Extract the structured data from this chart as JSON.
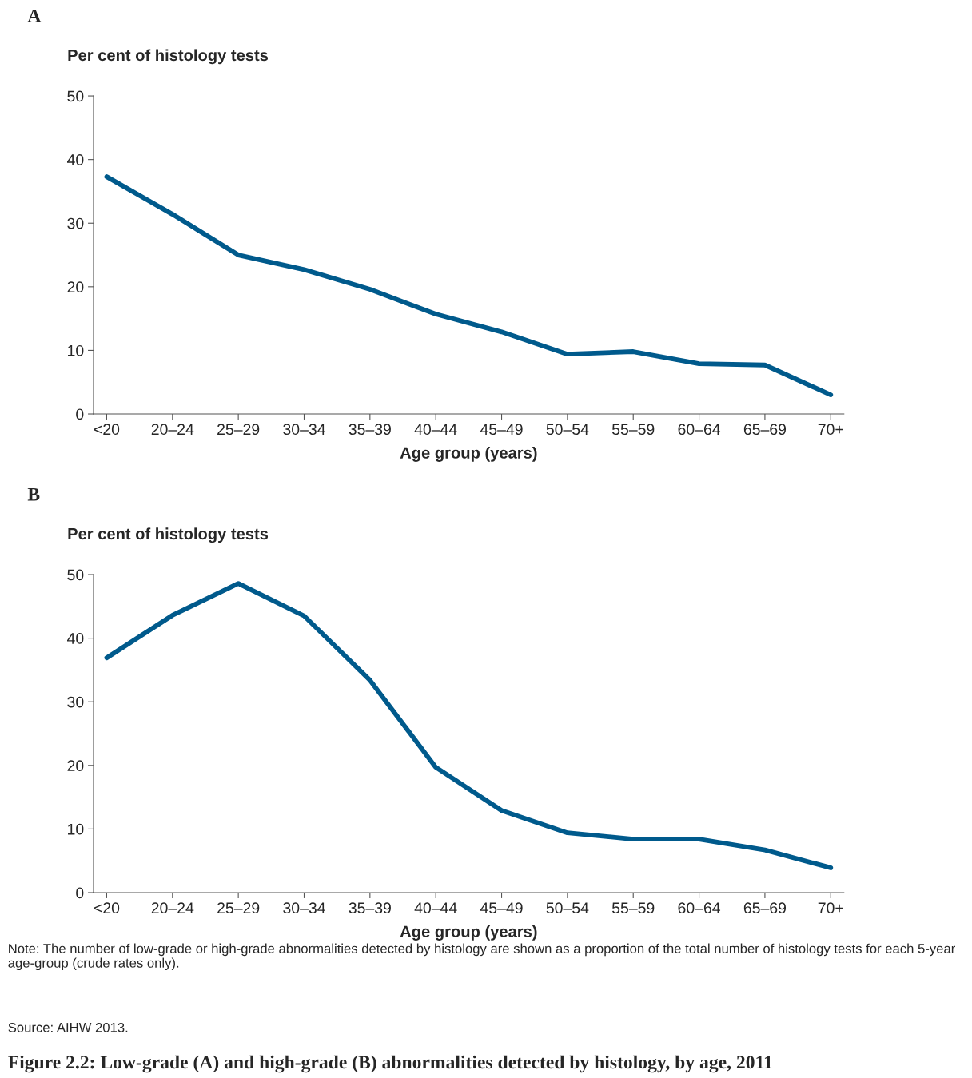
{
  "chart_data": [
    {
      "type": "line",
      "title": "A",
      "ylabel": "Per cent of histology tests",
      "xlabel": "Age group (years)",
      "categories": [
        "<20",
        "20–24",
        "25–29",
        "30–34",
        "35–39",
        "40–44",
        "45–49",
        "50–54",
        "55–59",
        "60–64",
        "65–69",
        "70+"
      ],
      "series": [
        {
          "color": "#005a8c",
          "values": [
            37.3,
            31.4,
            25.0,
            22.7,
            19.6,
            15.7,
            12.9,
            9.4,
            9.8,
            7.9,
            7.7,
            3.0
          ]
        }
      ],
      "ylim": [
        0,
        50
      ],
      "yticks": [
        0,
        10,
        20,
        30,
        40,
        50
      ],
      "grid": false,
      "legend": false,
      "marker": "none",
      "line_style": "solid"
    },
    {
      "type": "line",
      "title": "B",
      "ylabel": "Per cent of histology tests",
      "xlabel": "Age group (years)",
      "categories": [
        "<20",
        "20–24",
        "25–29",
        "30–34",
        "35–39",
        "40–44",
        "45–49",
        "50–54",
        "55–59",
        "60–64",
        "65–69",
        "70+"
      ],
      "series": [
        {
          "color": "#005a8c",
          "values": [
            36.9,
            43.6,
            48.6,
            43.5,
            33.4,
            19.7,
            12.9,
            9.4,
            8.4,
            8.4,
            6.7,
            3.9
          ]
        }
      ],
      "ylim": [
        0,
        50
      ],
      "yticks": [
        0,
        10,
        20,
        30,
        40,
        50
      ],
      "grid": false,
      "legend": false,
      "marker": "none",
      "line_style": "solid",
      "annotations": [
        "Note: The number of low-grade or high-grade abnormalities detected by histology are shown as a proportion of the total number of histology tests for each 5-year age-group (crude rates only).",
        "Source: AIHW 2013.",
        "Figure 2.2: Low-grade (A) and high-grade (B) abnormalities detected by histology, by age, 2011"
      ]
    }
  ]
}
